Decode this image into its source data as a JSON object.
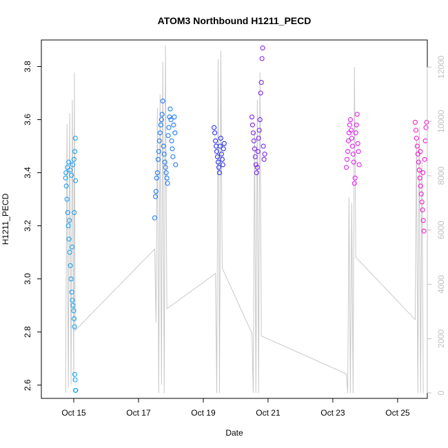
{
  "chart_data": {
    "type": "scatter",
    "title": "ATOM3 Northbound H1211_PECD",
    "xlabel": "Date",
    "ylabel": "H1211_PECD",
    "xlim": [
      "2015-10-14",
      "2015-10-25 22:00"
    ],
    "ylim": [
      2.55,
      3.9
    ],
    "y_ticks": [
      2.6,
      2.8,
      3.0,
      3.2,
      3.4,
      3.6,
      3.8
    ],
    "y2_ticks": [
      0,
      2000,
      4000,
      6000,
      8000,
      10000,
      12000
    ],
    "y2lim": [
      -200,
      13000
    ],
    "x_ticks": [
      {
        "label": "Oct 15",
        "date": "2015-10-15"
      },
      {
        "label": "Oct 17",
        "date": "2015-10-17"
      },
      {
        "label": "Oct 19",
        "date": "2015-10-19"
      },
      {
        "label": "Oct 21",
        "date": "2015-10-21"
      },
      {
        "label": "Oct 23",
        "date": "2015-10-23"
      },
      {
        "label": "Oct 25",
        "date": "2015-10-25"
      }
    ],
    "grid": false,
    "colors": {
      "flight1": "#1AA0F5",
      "flight2": "#1E7AF5",
      "flight3": "#2630F0",
      "flight4": "#7A22F0",
      "flight5": "#E21CF0",
      "flight6": "#F21ACE",
      "altitude": "#C8C8C8"
    },
    "series": [
      {
        "color": "#1AA0F5",
        "points": [
          [
            "2015-10-14 18:00",
            3.38
          ],
          [
            "2015-10-14 18:30",
            3.35
          ],
          [
            "2015-10-14 19:00",
            3.3
          ],
          [
            "2015-10-14 19:30",
            3.25
          ],
          [
            "2015-10-14 20:00",
            3.2
          ],
          [
            "2015-10-14 20:30",
            3.15
          ],
          [
            "2015-10-14 21:00",
            3.1
          ],
          [
            "2015-10-14 21:30",
            3.05
          ],
          [
            "2015-10-14 22:00",
            3.0
          ],
          [
            "2015-10-14 22:30",
            2.95
          ],
          [
            "2015-10-14 23:00",
            2.92
          ],
          [
            "2015-10-14 23:30",
            2.9
          ],
          [
            "2015-10-15 00:00",
            2.88
          ],
          [
            "2015-10-15 00:15",
            2.85
          ],
          [
            "2015-10-15 00:30",
            2.82
          ],
          [
            "2015-10-15 00:45",
            2.64
          ],
          [
            "2015-10-15 01:00",
            2.62
          ],
          [
            "2015-10-15 01:15",
            2.58
          ],
          [
            "2015-10-15 01:30",
            2.58
          ],
          [
            "2015-10-14 18:15",
            3.4
          ],
          [
            "2015-10-14 19:15",
            3.42
          ],
          [
            "2015-10-14 20:15",
            3.44
          ],
          [
            "2015-10-14 21:15",
            3.41
          ],
          [
            "2015-10-14 22:15",
            3.39
          ],
          [
            "2015-10-14 23:15",
            3.43
          ],
          [
            "2015-10-15 00:10",
            3.45
          ],
          [
            "2015-10-15 00:50",
            3.48
          ],
          [
            "2015-10-15 01:10",
            3.53
          ],
          [
            "2015-10-15 01:20",
            3.37
          ],
          [
            "2015-10-14 20:45",
            3.22
          ],
          [
            "2015-10-14 22:45",
            3.12
          ],
          [
            "2015-10-15 00:20",
            3.25
          ]
        ]
      },
      {
        "color": "#1E7AF5",
        "points": [
          [
            "2015-10-17 12:00",
            3.23
          ],
          [
            "2015-10-17 12:30",
            3.31
          ],
          [
            "2015-10-17 13:00",
            3.33
          ],
          [
            "2015-10-17 13:30",
            3.38
          ],
          [
            "2015-10-17 14:00",
            3.4
          ],
          [
            "2015-10-17 14:30",
            3.45
          ],
          [
            "2015-10-17 15:00",
            3.48
          ],
          [
            "2015-10-17 15:30",
            3.52
          ],
          [
            "2015-10-17 16:00",
            3.55
          ],
          [
            "2015-10-17 16:30",
            3.58
          ],
          [
            "2015-10-17 17:00",
            3.6
          ],
          [
            "2015-10-17 17:30",
            3.62
          ],
          [
            "2015-10-17 18:00",
            3.67
          ],
          [
            "2015-10-17 18:30",
            3.5
          ],
          [
            "2015-10-17 19:00",
            3.47
          ],
          [
            "2015-10-17 19:30",
            3.44
          ],
          [
            "2015-10-17 20:00",
            3.42
          ],
          [
            "2015-10-17 20:30",
            3.4
          ],
          [
            "2015-10-17 21:00",
            3.38
          ],
          [
            "2015-10-17 21:30",
            3.36
          ],
          [
            "2015-10-17 22:00",
            3.54
          ],
          [
            "2015-10-17 22:30",
            3.57
          ],
          [
            "2015-10-17 23:00",
            3.61
          ],
          [
            "2015-10-17 23:30",
            3.64
          ],
          [
            "2015-10-18 00:00",
            3.6
          ],
          [
            "2015-10-18 00:30",
            3.52
          ],
          [
            "2015-10-18 01:00",
            3.49
          ],
          [
            "2015-10-18 01:30",
            3.46
          ],
          [
            "2015-10-18 02:00",
            3.58
          ],
          [
            "2015-10-18 02:30",
            3.61
          ],
          [
            "2015-10-18 03:00",
            3.55
          ],
          [
            "2015-10-18 03:30",
            3.43
          ]
        ]
      },
      {
        "color": "#2630F0",
        "points": [
          [
            "2015-10-19 08:00",
            3.57
          ],
          [
            "2015-10-19 08:30",
            3.55
          ],
          [
            "2015-10-19 09:00",
            3.52
          ],
          [
            "2015-10-19 09:30",
            3.5
          ],
          [
            "2015-10-19 10:00",
            3.48
          ],
          [
            "2015-10-19 10:30",
            3.46
          ],
          [
            "2015-10-19 11:00",
            3.44
          ],
          [
            "2015-10-19 11:30",
            3.42
          ],
          [
            "2015-10-19 12:00",
            3.4
          ],
          [
            "2015-10-19 12:30",
            3.5
          ],
          [
            "2015-10-19 13:00",
            3.53
          ],
          [
            "2015-10-19 13:30",
            3.47
          ],
          [
            "2015-10-19 14:00",
            3.45
          ],
          [
            "2015-10-19 14:30",
            3.43
          ],
          [
            "2015-10-19 15:00",
            3.49
          ],
          [
            "2015-10-19 15:30",
            3.51
          ]
        ]
      },
      {
        "color": "#7A22F0",
        "points": [
          [
            "2015-10-20 12:00",
            3.61
          ],
          [
            "2015-10-20 12:30",
            3.58
          ],
          [
            "2015-10-20 13:00",
            3.55
          ],
          [
            "2015-10-20 13:30",
            3.52
          ],
          [
            "2015-10-20 14:00",
            3.49
          ],
          [
            "2015-10-20 14:30",
            3.46
          ],
          [
            "2015-10-20 15:00",
            3.43
          ],
          [
            "2015-10-20 15:30",
            3.4
          ],
          [
            "2015-10-20 16:00",
            3.42
          ],
          [
            "2015-10-20 16:30",
            3.48
          ],
          [
            "2015-10-20 17:00",
            3.53
          ],
          [
            "2015-10-20 17:30",
            3.56
          ],
          [
            "2015-10-20 18:00",
            3.6
          ],
          [
            "2015-10-20 18:30",
            3.7
          ],
          [
            "2015-10-20 19:00",
            3.74
          ],
          [
            "2015-10-20 19:30",
            3.83
          ],
          [
            "2015-10-20 20:00",
            3.87
          ],
          [
            "2015-10-20 20:30",
            3.5
          ],
          [
            "2015-10-20 21:00",
            3.45
          ],
          [
            "2015-10-20 21:30",
            3.47
          ]
        ]
      },
      {
        "color": "#E21CF0",
        "points": [
          [
            "2015-10-23 10:00",
            3.42
          ],
          [
            "2015-10-23 10:30",
            3.45
          ],
          [
            "2015-10-23 11:00",
            3.48
          ],
          [
            "2015-10-23 11:30",
            3.52
          ],
          [
            "2015-10-23 12:00",
            3.55
          ],
          [
            "2015-10-23 12:30",
            3.58
          ],
          [
            "2015-10-23 13:00",
            3.6
          ],
          [
            "2015-10-23 13:30",
            3.56
          ],
          [
            "2015-10-23 14:00",
            3.53
          ],
          [
            "2015-10-23 14:30",
            3.5
          ],
          [
            "2015-10-23 15:00",
            3.47
          ],
          [
            "2015-10-23 15:30",
            3.44
          ],
          [
            "2015-10-23 16:00",
            3.36
          ],
          [
            "2015-10-23 16:30",
            3.38
          ],
          [
            "2015-10-23 17:00",
            3.55
          ],
          [
            "2015-10-23 17:30",
            3.58
          ],
          [
            "2015-10-23 18:00",
            3.62
          ],
          [
            "2015-10-23 18:30",
            3.51
          ],
          [
            "2015-10-23 19:00",
            3.48
          ],
          [
            "2015-10-23 19:30",
            3.43
          ]
        ]
      },
      {
        "color": "#F21ACE",
        "points": [
          [
            "2015-10-25 13:00",
            3.59
          ],
          [
            "2015-10-25 13:30",
            3.56
          ],
          [
            "2015-10-25 14:00",
            3.53
          ],
          [
            "2015-10-25 14:30",
            3.5
          ],
          [
            "2015-10-25 15:00",
            3.47
          ],
          [
            "2015-10-25 15:30",
            3.44
          ],
          [
            "2015-10-25 16:00",
            3.41
          ],
          [
            "2015-10-25 16:30",
            3.38
          ],
          [
            "2015-10-25 17:00",
            3.35
          ],
          [
            "2015-10-25 17:30",
            3.32
          ],
          [
            "2015-10-25 18:00",
            3.29
          ],
          [
            "2015-10-25 18:30",
            3.26
          ],
          [
            "2015-10-25 19:00",
            3.22
          ],
          [
            "2015-10-25 19:30",
            3.18
          ],
          [
            "2015-10-25 20:00",
            3.45
          ],
          [
            "2015-10-25 20:30",
            3.52
          ],
          [
            "2015-10-25 21:00",
            3.57
          ],
          [
            "2015-10-25 21:30",
            3.59
          ],
          [
            "2015-10-25 16:45",
            3.48
          ],
          [
            "2015-10-25 18:45",
            3.4
          ]
        ]
      }
    ],
    "altitude_lines": [
      {
        "type": "polyline",
        "points": [
          [
            "2015-10-14 18:00",
            0
          ],
          [
            "2015-10-14 19:00",
            9900
          ],
          [
            "2015-10-14 20:00",
            200
          ],
          [
            "2015-10-14 21:00",
            10300
          ],
          [
            "2015-10-14 22:00",
            300
          ],
          [
            "2015-10-14 23:00",
            10800
          ],
          [
            "2015-10-15 00:00",
            400
          ],
          [
            "2015-10-15 00:30",
            11800
          ],
          [
            "2015-10-15 01:00",
            2300
          ],
          [
            "2015-10-17 12:00",
            5300
          ],
          [
            "2015-10-17 13:00",
            2600
          ],
          [
            "2015-10-17 14:00",
            10500
          ],
          [
            "2015-10-17 15:00",
            0
          ],
          [
            "2015-10-17 16:00",
            11000
          ],
          [
            "2015-10-17 17:00",
            300
          ],
          [
            "2015-10-17 18:00",
            12200
          ],
          [
            "2015-10-17 19:00",
            0
          ],
          [
            "2015-10-17 20:00",
            12800
          ],
          [
            "2015-10-17 21:00",
            3100
          ],
          [
            "2015-10-19 09:00",
            4400
          ],
          [
            "2015-10-19 10:00",
            0
          ],
          [
            "2015-10-19 11:00",
            12300
          ],
          [
            "2015-10-19 12:00",
            0
          ],
          [
            "2015-10-19 13:00",
            12600
          ],
          [
            "2015-10-19 14:00",
            4600
          ],
          [
            "2015-10-20 12:00",
            2200
          ],
          [
            "2015-10-20 13:00",
            0
          ],
          [
            "2015-10-20 14:00",
            9600
          ],
          [
            "2015-10-20 15:00",
            0
          ],
          [
            "2015-10-20 16:00",
            10800
          ],
          [
            "2015-10-20 17:00",
            0
          ],
          [
            "2015-10-20 18:00",
            11800
          ],
          [
            "2015-10-20 19:00",
            2100
          ],
          [
            "2015-10-23 10:00",
            700
          ],
          [
            "2015-10-23 11:00",
            0
          ],
          [
            "2015-10-23 12:00",
            7200
          ],
          [
            "2015-10-23 13:00",
            0
          ],
          [
            "2015-10-23 14:00",
            7000
          ],
          [
            "2015-10-23 15:00",
            0
          ],
          [
            "2015-10-23 16:00",
            12000
          ],
          [
            "2015-10-23 17:00",
            5000
          ],
          [
            "2015-10-25 13:00",
            2700
          ],
          [
            "2015-10-25 14:00",
            9300
          ],
          [
            "2015-10-25 15:00",
            0
          ],
          [
            "2015-10-25 16:00",
            9800
          ],
          [
            "2015-10-25 17:00",
            0
          ],
          [
            "2015-10-25 18:00",
            8500
          ],
          [
            "2015-10-25 19:00",
            0
          ]
        ]
      }
    ]
  }
}
